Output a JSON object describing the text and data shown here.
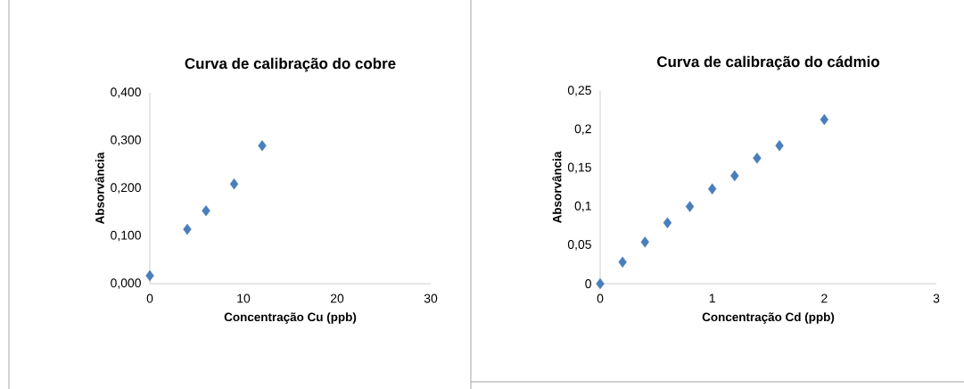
{
  "chart_data": [
    {
      "type": "scatter",
      "title": "Curva de calibração do cobre",
      "xlabel": "Concentração Cu (ppb)",
      "ylabel": "Absorvância",
      "marker": "diamond",
      "color": "#4a7ebb",
      "x": [
        0,
        4,
        6,
        9,
        12
      ],
      "values": [
        0.017,
        0.114,
        0.153,
        0.209,
        0.289
      ],
      "xlim": [
        0,
        30
      ],
      "xticks": [
        0,
        10,
        20,
        30
      ],
      "ylim": [
        0,
        0.4
      ],
      "yticks": [
        {
          "value": 0,
          "label": "0,000"
        },
        {
          "value": 0.1,
          "label": "0,100"
        },
        {
          "value": 0.2,
          "label": "0,200"
        },
        {
          "value": 0.3,
          "label": "0,300"
        },
        {
          "value": 0.4,
          "label": "0,400"
        }
      ]
    },
    {
      "type": "scatter",
      "title": "Curva de calibração do cádmio",
      "xlabel": "Concentração Cd (ppb)",
      "ylabel": "Absorvância",
      "marker": "diamond",
      "color": "#4a7ebb",
      "x": [
        0,
        0.2,
        0.4,
        0.6,
        0.8,
        1.0,
        1.2,
        1.4,
        1.6,
        2.0
      ],
      "values": [
        0,
        0.028,
        0.054,
        0.079,
        0.1,
        0.123,
        0.14,
        0.163,
        0.179,
        0.213
      ],
      "xlim": [
        0,
        3
      ],
      "xticks": [
        0,
        1,
        2,
        3
      ],
      "ylim": [
        0,
        0.25
      ],
      "yticks": [
        0,
        {
          "value": 0.05,
          "label": "0,05"
        },
        {
          "value": 0.1,
          "label": "0,1"
        },
        {
          "value": 0.15,
          "label": "0,15"
        },
        {
          "value": 0.2,
          "label": "0,2"
        },
        {
          "value": 0.25,
          "label": "0,25"
        }
      ]
    }
  ]
}
